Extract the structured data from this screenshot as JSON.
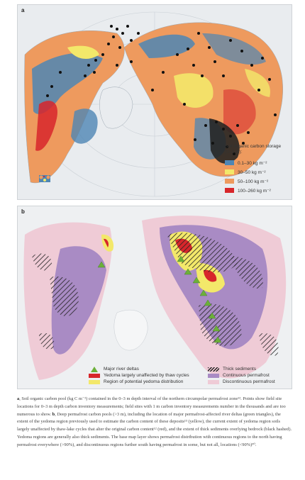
{
  "panel_a": {
    "label": "a",
    "legend_title": "Soil organic carbon storage (0–3 m):",
    "legend_items": [
      {
        "label": "0.1–30 kg m⁻²",
        "color": "#4e86b4"
      },
      {
        "label": "30–50 kg m⁻²",
        "color": "#f3e86a"
      },
      {
        "label": "50–100 kg m⁻²",
        "color": "#ee9a5e"
      },
      {
        "label": "100–260 kg m⁻²",
        "color": "#d7262b"
      }
    ]
  },
  "panel_b": {
    "label": "b",
    "legend_left": [
      {
        "label": "Major river deltas",
        "type": "triangle",
        "color": "#6cb03a"
      },
      {
        "label": "Yedoma largely unaffected by thaw cycles",
        "type": "swatch",
        "color": "#d7262b"
      },
      {
        "label": "Region of potential yedoma distribution",
        "type": "swatch",
        "color": "#f3e86a"
      }
    ],
    "legend_right": [
      {
        "label": "Thick sediments",
        "type": "hatch",
        "color": "#222222"
      },
      {
        "label": "Continuous permafrost",
        "type": "swatch",
        "color": "#a98bc4"
      },
      {
        "label": "Discontinuous permafrost",
        "type": "swatch",
        "color": "#efcbd6"
      }
    ]
  },
  "caption": {
    "a_label": "a",
    "a_text": ", Soil organic carbon pool (kg C m⁻²) contained in the 0–3 m depth interval of the northern circumpolar permafrost zone¹². Points show field site locations for 0–3 m depth carbon inventory measurements; field sites with 1 m carbon inventory measurements number in the thousands and are too numerous to show. ",
    "b_label": "b",
    "b_text": ", Deep permafrost carbon pools (>3 m), including the location of major permafrost-affected river deltas (green triangles), the extent of the yedoma region previously used to estimate the carbon content of these deposits¹³ (yellow), the current extent of yedoma region soils largely unaffected by thaw-lake cycles that alter the original carbon content¹² (red), and the extent of thick sediments overlying bedrock (black hashed). Yedoma regions are generally also thick sediments. The base map layer shows permafrost distribution with continuous regions to the north having permafrost everywhere (>90%), and discontinuous regions further south having permafrost in some, but not all, locations (<90%)⁹⁰."
  }
}
